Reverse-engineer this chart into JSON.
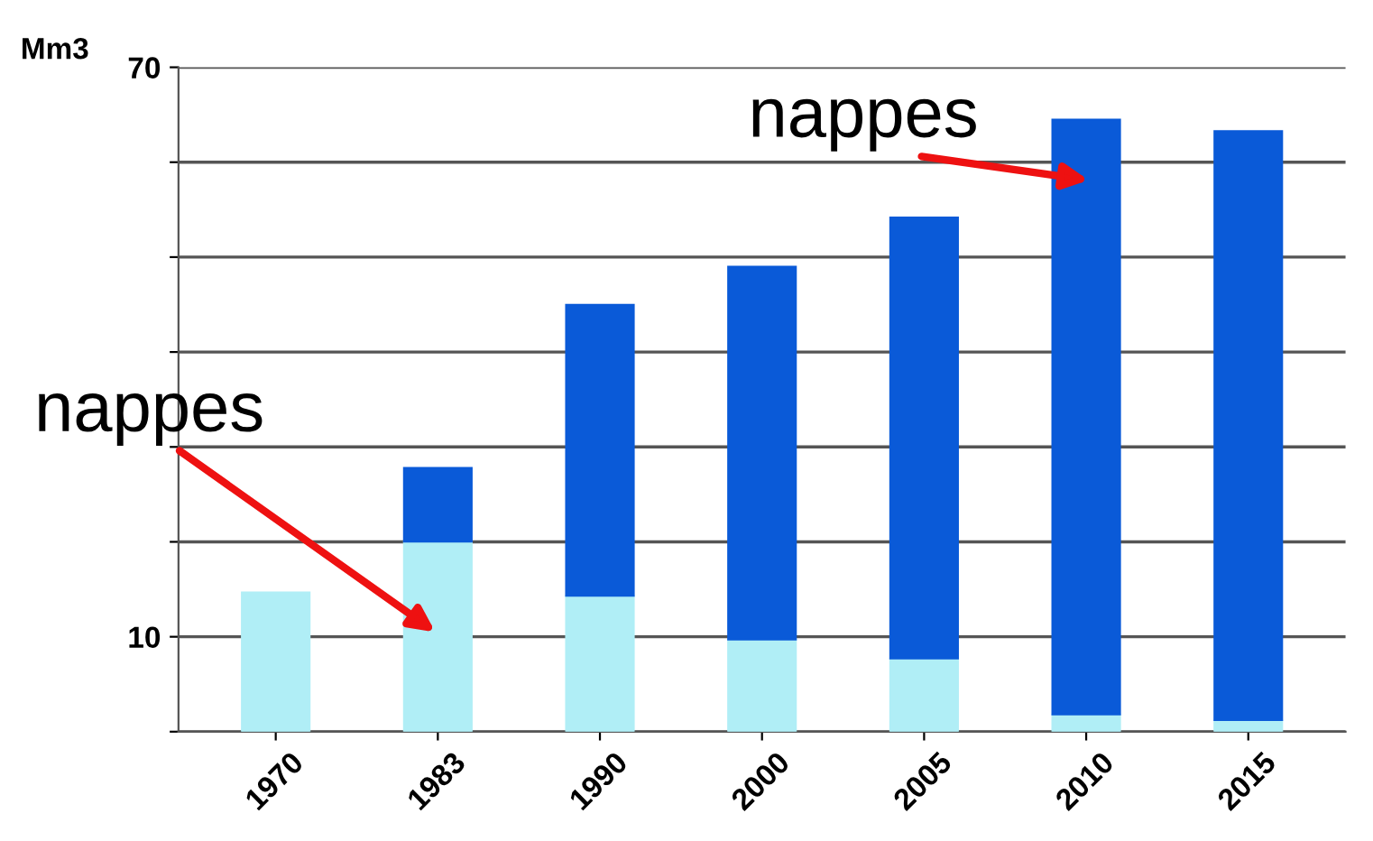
{
  "chart_data": {
    "type": "bar",
    "stacked": true,
    "ylabel": "Mm3",
    "categories": [
      "1970",
      "1983",
      "1990",
      "2000",
      "2005",
      "2010",
      "2015"
    ],
    "series": [
      {
        "color": "#b0eef6",
        "values": [
          14.7,
          20.0,
          14.3,
          9.7,
          7.7,
          1.8,
          1.2
        ]
      },
      {
        "color": "#0a5ad8",
        "values": [
          null,
          7.8,
          30.7,
          39.3,
          46.5,
          62.7,
          62.1
        ]
      }
    ],
    "ylim": [
      0,
      70
    ],
    "yticks": [
      {
        "value": 0,
        "label": null
      },
      10,
      {
        "value": 20,
        "label": null
      },
      {
        "value": 30,
        "label": null
      },
      {
        "value": 40,
        "label": null
      },
      {
        "value": 50,
        "label": null
      },
      {
        "value": 60,
        "label": null
      },
      70
    ],
    "grid": "y",
    "annotations": [
      "nappes",
      "nappes"
    ]
  }
}
